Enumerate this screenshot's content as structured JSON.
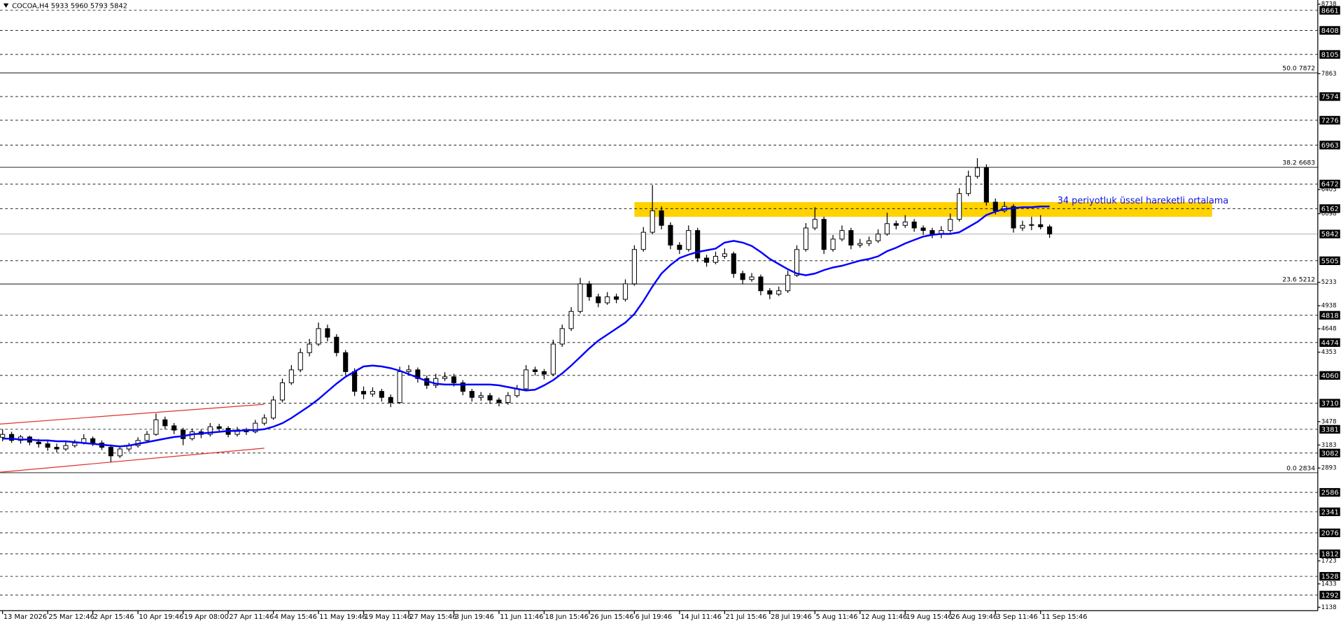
{
  "chart_data": {
    "type": "candlestick",
    "title": "COCOA,H4  5933 5960 5793 5842",
    "annotation": "34 periyotluk üssel hareketli ortalama",
    "categories": [
      "13 Mar 2026",
      null,
      null,
      null,
      null,
      "25 Mar 12:46",
      null,
      null,
      null,
      null,
      "2 Apr 15:46",
      null,
      null,
      null,
      null,
      "10 Apr 19:46",
      null,
      null,
      null,
      null,
      "19 Apr 08:00",
      null,
      null,
      null,
      null,
      "27 Apr 11:46",
      null,
      null,
      null,
      null,
      "4 May 15:46",
      null,
      null,
      null,
      null,
      "11 May 19:46",
      null,
      null,
      null,
      null,
      "19 May 11:46",
      null,
      null,
      null,
      null,
      "27 May 15:46",
      null,
      null,
      null,
      null,
      "3 Jun 19:46",
      null,
      null,
      null,
      null,
      "11 Jun 11:46",
      null,
      null,
      null,
      null,
      "18 Jun 15:46",
      null,
      null,
      null,
      null,
      "26 Jun 15:46",
      null,
      null,
      null,
      null,
      "6 Jul 19:46",
      null,
      null,
      null,
      null,
      "14 Jul 11:46",
      null,
      null,
      null,
      null,
      "21 Jul 15:46",
      null,
      null,
      null,
      null,
      "28 Jul 19:46",
      null,
      null,
      null,
      null,
      "5 Aug 11:46",
      null,
      null,
      null,
      null,
      "12 Aug 11:46",
      null,
      null,
      null,
      null,
      "19 Aug 15:46",
      null,
      null,
      null,
      null,
      "26 Aug 19:46",
      null,
      null,
      null,
      null,
      "3 Sep 11:46",
      null,
      null,
      null,
      null,
      "11 Sep 15:46",
      null
    ],
    "color": "#000000",
    "ohlc": [
      [
        3280,
        3380,
        3230,
        3317
      ],
      [
        3317,
        3350,
        3210,
        3241
      ],
      [
        3241,
        3310,
        3200,
        3284
      ],
      [
        3284,
        3300,
        3180,
        3219
      ],
      [
        3219,
        3260,
        3150,
        3198
      ],
      [
        3198,
        3230,
        3110,
        3154
      ],
      [
        3154,
        3200,
        3090,
        3133
      ],
      [
        3133,
        3230,
        3110,
        3176
      ],
      [
        3176,
        3250,
        3150,
        3208
      ],
      [
        3208,
        3320,
        3190,
        3263
      ],
      [
        3263,
        3290,
        3170,
        3208
      ],
      [
        3208,
        3240,
        3120,
        3154
      ],
      [
        3154,
        3190,
        2970,
        3046
      ],
      [
        3046,
        3170,
        3020,
        3133
      ],
      [
        3133,
        3210,
        3100,
        3176
      ],
      [
        3176,
        3280,
        3150,
        3241
      ],
      [
        3241,
        3360,
        3220,
        3317
      ],
      [
        3317,
        3580,
        3300,
        3501
      ],
      [
        3501,
        3540,
        3380,
        3425
      ],
      [
        3425,
        3460,
        3320,
        3371
      ],
      [
        3371,
        3400,
        3180,
        3263
      ],
      [
        3263,
        3390,
        3240,
        3349
      ],
      [
        3349,
        3380,
        3270,
        3317
      ],
      [
        3317,
        3460,
        3290,
        3414
      ],
      [
        3414,
        3450,
        3360,
        3393
      ],
      [
        3393,
        3420,
        3280,
        3317
      ],
      [
        3317,
        3410,
        3290,
        3371
      ],
      [
        3371,
        3400,
        3310,
        3349
      ],
      [
        3349,
        3500,
        3330,
        3458
      ],
      [
        3458,
        3570,
        3430,
        3523
      ],
      [
        3523,
        3800,
        3500,
        3750
      ],
      [
        3750,
        4020,
        3720,
        3967
      ],
      [
        3967,
        4190,
        3940,
        4130
      ],
      [
        4130,
        4400,
        4100,
        4347
      ],
      [
        4347,
        4520,
        4300,
        4455
      ],
      [
        4455,
        4726,
        4430,
        4650
      ],
      [
        4650,
        4700,
        4490,
        4542
      ],
      [
        4542,
        4580,
        4300,
        4347
      ],
      [
        4347,
        4380,
        4060,
        4108
      ],
      [
        4108,
        4150,
        3800,
        3859
      ],
      [
        3859,
        3920,
        3760,
        3826
      ],
      [
        3826,
        3910,
        3790,
        3859
      ],
      [
        3859,
        3890,
        3730,
        3783
      ],
      [
        3783,
        3820,
        3660,
        3718
      ],
      [
        3718,
        4170,
        3700,
        4108
      ],
      [
        4108,
        4190,
        4060,
        4130
      ],
      [
        4130,
        4160,
        3970,
        4021
      ],
      [
        4021,
        4060,
        3890,
        3935
      ],
      [
        3935,
        4080,
        3900,
        4021
      ],
      [
        4021,
        4100,
        3990,
        4043
      ],
      [
        4043,
        4080,
        3920,
        3967
      ],
      [
        3967,
        4000,
        3810,
        3859
      ],
      [
        3859,
        3890,
        3730,
        3783
      ],
      [
        3783,
        3850,
        3740,
        3805
      ],
      [
        3805,
        3840,
        3700,
        3750
      ],
      [
        3750,
        3780,
        3670,
        3718
      ],
      [
        3718,
        3850,
        3690,
        3805
      ],
      [
        3805,
        3940,
        3780,
        3891
      ],
      [
        3891,
        4190,
        3860,
        4130
      ],
      [
        4130,
        4170,
        4060,
        4108
      ],
      [
        4108,
        4140,
        4010,
        4076
      ],
      [
        4076,
        4510,
        4050,
        4455
      ],
      [
        4455,
        4700,
        4420,
        4650
      ],
      [
        4650,
        4920,
        4620,
        4867
      ],
      [
        4867,
        5290,
        4840,
        5214
      ],
      [
        5214,
        5250,
        5000,
        5051
      ],
      [
        5051,
        5090,
        4920,
        4975
      ],
      [
        4975,
        5110,
        4950,
        5051
      ],
      [
        5051,
        5090,
        4970,
        5019
      ],
      [
        5019,
        5270,
        4990,
        5214
      ],
      [
        5214,
        5700,
        5190,
        5647
      ],
      [
        5647,
        5930,
        5620,
        5864
      ],
      [
        5864,
        6460,
        5840,
        6135
      ],
      [
        6135,
        6190,
        5900,
        5951
      ],
      [
        5951,
        5990,
        5650,
        5702
      ],
      [
        5702,
        5740,
        5590,
        5647
      ],
      [
        5647,
        5950,
        5620,
        5886
      ],
      [
        5886,
        5920,
        5490,
        5539
      ],
      [
        5539,
        5580,
        5430,
        5485
      ],
      [
        5485,
        5620,
        5460,
        5561
      ],
      [
        5561,
        5660,
        5530,
        5593
      ],
      [
        5593,
        5620,
        5290,
        5344
      ],
      [
        5344,
        5380,
        5210,
        5268
      ],
      [
        5268,
        5350,
        5240,
        5301
      ],
      [
        5301,
        5330,
        5070,
        5127
      ],
      [
        5127,
        5160,
        5020,
        5084
      ],
      [
        5084,
        5180,
        5060,
        5127
      ],
      [
        5127,
        5380,
        5100,
        5322
      ],
      [
        5322,
        5700,
        5300,
        5647
      ],
      [
        5647,
        5980,
        5620,
        5918
      ],
      [
        5918,
        6180,
        5890,
        6027
      ],
      [
        6027,
        6060,
        5590,
        5647
      ],
      [
        5647,
        5830,
        5620,
        5778
      ],
      [
        5778,
        5950,
        5750,
        5886
      ],
      [
        5886,
        5920,
        5650,
        5702
      ],
      [
        5702,
        5780,
        5670,
        5723
      ],
      [
        5723,
        5810,
        5690,
        5756
      ],
      [
        5756,
        5900,
        5730,
        5842
      ],
      [
        5842,
        6110,
        5820,
        5973
      ],
      [
        5973,
        6010,
        5900,
        5951
      ],
      [
        5951,
        6080,
        5920,
        5994
      ],
      [
        5994,
        6030,
        5870,
        5918
      ],
      [
        5918,
        5950,
        5830,
        5886
      ],
      [
        5886,
        5920,
        5790,
        5842
      ],
      [
        5842,
        5940,
        5790,
        5886
      ],
      [
        5886,
        6100,
        5860,
        6027
      ],
      [
        6027,
        6420,
        6000,
        6352
      ],
      [
        6352,
        6640,
        6320,
        6569
      ],
      [
        6569,
        6797,
        6540,
        6677
      ],
      [
        6677,
        6720,
        6200,
        6244
      ],
      [
        6244,
        6290,
        6090,
        6135
      ],
      [
        6135,
        6250,
        6110,
        6189
      ],
      [
        6189,
        6220,
        5860,
        5918
      ],
      [
        5918,
        6010,
        5880,
        5951
      ],
      [
        5951,
        6060,
        5890,
        5960
      ],
      [
        5960,
        6080,
        5900,
        5933
      ],
      [
        5933,
        5960,
        5793,
        5842
      ]
    ],
    "ema": {
      "color": "#0000ff",
      "values": [
        3263,
        3263,
        3252,
        3252,
        3241,
        3241,
        3230,
        3230,
        3219,
        3208,
        3198,
        3187,
        3176,
        3165,
        3176,
        3198,
        3219,
        3241,
        3263,
        3284,
        3295,
        3317,
        3328,
        3339,
        3349,
        3360,
        3360,
        3371,
        3371,
        3382,
        3414,
        3458,
        3523,
        3599,
        3675,
        3761,
        3859,
        3956,
        4043,
        4108,
        4173,
        4184,
        4173,
        4151,
        4119,
        4076,
        4032,
        3989,
        3956,
        3945,
        3945,
        3945,
        3945,
        3945,
        3945,
        3935,
        3913,
        3891,
        3870,
        3880,
        3935,
        4000,
        4086,
        4184,
        4292,
        4401,
        4498,
        4574,
        4650,
        4726,
        4835,
        4997,
        5181,
        5344,
        5452,
        5539,
        5582,
        5615,
        5637,
        5658,
        5734,
        5756,
        5734,
        5691,
        5615,
        5528,
        5463,
        5398,
        5344,
        5322,
        5344,
        5387,
        5420,
        5442,
        5474,
        5507,
        5528,
        5561,
        5626,
        5669,
        5723,
        5767,
        5810,
        5832,
        5843,
        5843,
        5864,
        5929,
        5994,
        6081,
        6124,
        6157,
        6168,
        6179,
        6179,
        6189,
        6189
      ]
    },
    "channel": {
      "color": "#e03030",
      "x": [
        0,
        29
      ],
      "upper": [
        3447,
        3696
      ],
      "lower": [
        2840,
        3143
      ]
    },
    "zone": {
      "color": "#ffd200",
      "x": [
        70,
        134
      ],
      "values": [
        6059,
        6244
      ]
    },
    "fib_levels": [
      {
        "value": 7872,
        "label": "50.0 7872"
      },
      {
        "value": 6683,
        "label": "38.2 6683"
      },
      {
        "value": 5212,
        "label": "23.6 5212"
      },
      {
        "value": 2834,
        "label": "0.0 2834"
      }
    ],
    "ylim": [
      1095,
      8791
    ],
    "yticks": [
      8738,
      7863,
      6403,
      6098,
      5233,
      4938,
      4648,
      4353,
      3478,
      3183,
      2893,
      1723,
      1433,
      1138
    ],
    "grid_levels": [
      8661,
      8408,
      8105,
      7574,
      7276,
      6963,
      6472,
      6162,
      5842,
      5505,
      4818,
      4474,
      4060,
      3710,
      3381,
      3082,
      2586,
      2341,
      2076,
      1812,
      1528,
      1292
    ]
  }
}
